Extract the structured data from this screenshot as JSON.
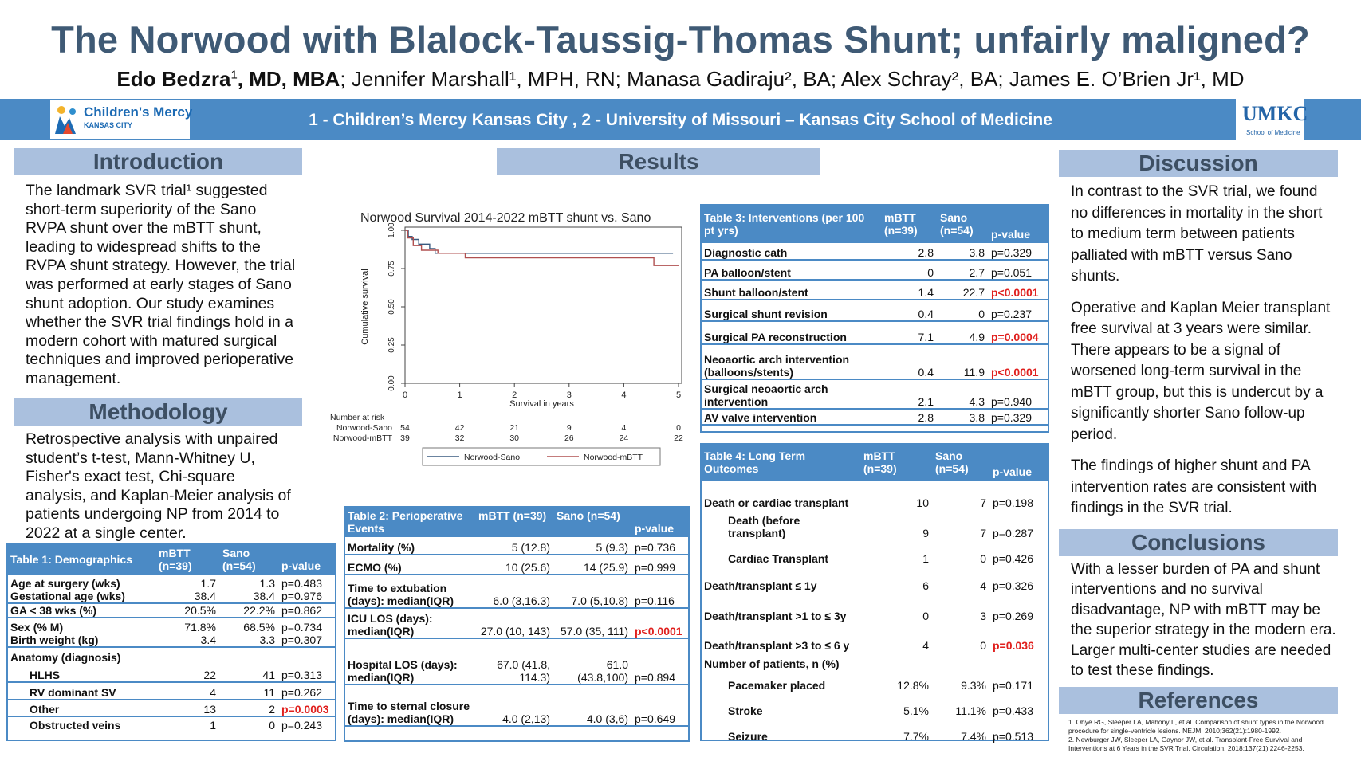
{
  "title": "The Norwood with Blalock-Taussig-Thomas Shunt; unfairly maligned?",
  "authors": {
    "a1_name": "Edo Bedzra",
    "a1_sup": "1",
    "a1_deg": ", MD, MBA",
    "rest": "; Jennifer Marshall¹, MPH, RN; Manasa Gadiraju², BA; Alex Schray², BA; James E. O’Brien Jr¹, MD"
  },
  "banner": {
    "affiliations": "1 - Children’s Mercy Kansas City , 2 - University of Missouri – Kansas City School of Medicine",
    "logo_left_name": "Children's Mercy",
    "logo_left_sub": "KANSAS CITY",
    "logo_right_name": "UMKC",
    "logo_right_sub": "School of Medicine"
  },
  "introduction": {
    "heading": "Introduction",
    "text": "The landmark SVR trial¹ suggested short-term superiority of the Sano RVPA shunt over the mBTT shunt, leading to widespread shifts to the RVPA shunt strategy. However, the trial was performed at early stages of Sano shunt adoption. Our study examines whether the SVR trial findings hold in a modern cohort with matured surgical techniques and improved perioperative management."
  },
  "methodology": {
    "heading": "Methodology",
    "text": "Retrospective analysis with unpaired student’s t-test, Mann-Whitney U, Fisher's exact test, Chi-square analysis, and Kaplan-Meier analysis of patients undergoing NP from 2014 to 2022 at a single center."
  },
  "results": {
    "heading": "Results"
  },
  "discussion": {
    "heading": "Discussion",
    "p1": "In contrast to the SVR trial, we found no differences in mortality in the short to medium term between patients palliated with mBTT versus Sano shunts.",
    "p2": "Operative and Kaplan Meier transplant free survival at 3 years were similar. There appears to be a signal of worsened long-term survival in the mBTT group, but this is undercut by a significantly shorter Sano follow-up period.",
    "p3": "The findings of higher shunt and PA intervention rates are consistent with findings in the SVR trial."
  },
  "conclusions": {
    "heading": "Conclusions",
    "text": "With a lesser burden of PA and shunt interventions and no survival disadvantage, NP with mBTT may be the superior strategy in the modern era. Larger multi-center studies are needed to test these findings."
  },
  "references": {
    "heading": "References",
    "r1": "1. Ohye RG, Sleeper LA, Mahony L, et al. Comparison of shunt types in the Norwood procedure for single-ventricle lesions. NEJM. 2010;362(21):1980-1992.",
    "r2": "2. Newburger JW, Sleeper LA, Gaynor JW, et al. Transplant-Free Survival and Interventions at 6 Years in the SVR Trial. Circulation. 2018;137(21):2246-2253."
  },
  "colors": {
    "accent": "#4b8ac5",
    "heading_bg": "#aac0de",
    "title": "#3f5a75",
    "significant": "#e0201e",
    "sano_line": "#3a5b80",
    "mbtt_line": "#b05050"
  },
  "table1": {
    "header": [
      "Table 1: Demographics",
      "mBTT (n=39)",
      "Sano (n=54)",
      "p-value"
    ],
    "rows": [
      {
        "label": "Age at surgery (wks)",
        "m": "1.7",
        "s": "1.3",
        "p": "p=0.483",
        "sig": false,
        "indent": 0,
        "bottom": false
      },
      {
        "label": "Gestational age (wks)",
        "m": "38.4",
        "s": "38.4",
        "p": "p=0.976",
        "sig": false,
        "indent": 0,
        "bottom": true
      },
      {
        "label": "GA < 38 wks (%)",
        "m": "20.5%",
        "s": "22.2%",
        "p": "p=0.862",
        "sig": false,
        "indent": 0,
        "bottom": true
      },
      {
        "label": "Sex (% M)",
        "m": "71.8%",
        "s": "68.5%",
        "p": "p=0.734",
        "sig": false,
        "indent": 0,
        "bottom": false
      },
      {
        "label": "Birth weight (kg)",
        "m": "3.4",
        "s": "3.3",
        "p": "p=0.307",
        "sig": false,
        "indent": 0,
        "bottom": true
      },
      {
        "label": "Anatomy (diagnosis)",
        "m": "",
        "s": "",
        "p": "",
        "sig": false,
        "indent": 0,
        "bottom": false
      },
      {
        "label": "HLHS",
        "m": "22",
        "s": "41",
        "p": "p=0.313",
        "sig": false,
        "indent": 1,
        "bottom": true
      },
      {
        "label": "RV dominant SV",
        "m": "4",
        "s": "11",
        "p": "p=0.262",
        "sig": false,
        "indent": 1,
        "bottom": true
      },
      {
        "label": "Other",
        "m": "13",
        "s": "2",
        "p": "p=0.0003",
        "sig": true,
        "indent": 1,
        "bottom": true
      },
      {
        "label": "Obstructed veins",
        "m": "1",
        "s": "0",
        "p": "p=0.243",
        "sig": false,
        "indent": 1,
        "bottom": false
      }
    ]
  },
  "table2": {
    "header": [
      "Table 2: Perioperative Events",
      "mBTT (n=39)",
      "Sano (n=54)",
      "p-value"
    ],
    "rows": [
      {
        "label": "Mortality (%)",
        "m": "5 (12.8)",
        "s": "5 (9.3)",
        "p": "p=0.736",
        "sig": false
      },
      {
        "label": "ECMO (%)",
        "m": "10 (25.6)",
        "s": "14 (25.9)",
        "p": "p=0.999",
        "sig": false
      },
      {
        "label": "Time to extubation (days): median(IQR)",
        "m": "6.0 (3,16.3)",
        "s": "7.0 (5,10.8)",
        "p": "p=0.116",
        "sig": false
      },
      {
        "label": "ICU LOS (days): median(IQR)",
        "m": "27.0 (10, 143)",
        "s": "57.0 (35, 111)",
        "p": "p<0.0001",
        "sig": true
      },
      {
        "label": "Hospital LOS (days): median(IQR)",
        "m": "67.0 (41.8, 114.3)",
        "s": "61.0 (43.8,100)",
        "p": "p=0.894",
        "sig": false
      },
      {
        "label": "Time to sternal closure (days): median(IQR)",
        "m": "4.0 (2,13)",
        "s": "4.0 (3,6)",
        "p": "p=0.649",
        "sig": false
      }
    ]
  },
  "table3": {
    "header": [
      "Table 3: Interventions (per 100 pt yrs)",
      "mBTT (n=39)",
      "Sano (n=54)",
      "p-value"
    ],
    "rows": [
      {
        "label": "Diagnostic cath",
        "m": "2.8",
        "s": "3.8",
        "p": "p=0.329",
        "sig": false
      },
      {
        "label": "PA balloon/stent",
        "m": "0",
        "s": "2.7",
        "p": "p=0.051",
        "sig": false
      },
      {
        "label": "Shunt balloon/stent",
        "m": "1.4",
        "s": "22.7",
        "p": "p<0.0001",
        "sig": true
      },
      {
        "label": "Surgical shunt revision",
        "m": "0.4",
        "s": "0",
        "p": "p=0.237",
        "sig": false
      },
      {
        "label": "Surgical PA reconstruction",
        "m": "7.1",
        "s": "4.9",
        "p": "p=0.0004",
        "sig": true
      },
      {
        "label": "Neoaortic arch intervention (balloons/stents)",
        "m": "0.4",
        "s": "11.9",
        "p": "p<0.0001",
        "sig": true
      },
      {
        "label": "Surgical neoaortic arch intervention",
        "m": "2.1",
        "s": "4.3",
        "p": "p=0.940",
        "sig": false
      },
      {
        "label": "AV valve intervention",
        "m": "2.8",
        "s": "3.8",
        "p": "p=0.329",
        "sig": false
      }
    ]
  },
  "table4": {
    "header": [
      "Table 4: Long Term Outcomes",
      "mBTT (n=39)",
      "Sano (n=54)",
      "p-value"
    ],
    "rows": [
      {
        "label": "Death or cardiac transplant",
        "m": "10",
        "s": "7",
        "p": "p=0.198",
        "sig": false,
        "indent": 0
      },
      {
        "label": "Death (before transplant)",
        "m": "9",
        "s": "7",
        "p": "p=0.287",
        "sig": false,
        "indent": 1
      },
      {
        "label": "Cardiac Transplant",
        "m": "1",
        "s": "0",
        "p": "p=0.426",
        "sig": false,
        "indent": 1
      },
      {
        "label": "Death/transplant ≤ 1y",
        "m": "6",
        "s": "4",
        "p": "p=0.326",
        "sig": false,
        "indent": 0
      },
      {
        "label": "Death/transplant >1 to ≤ 3y",
        "m": "0",
        "s": "3",
        "p": "p=0.269",
        "sig": false,
        "indent": 0
      },
      {
        "label": "Death/transplant >3 to ≤ 6 y",
        "m": "4",
        "s": "0",
        "p": "p=0.036",
        "sig": true,
        "indent": 0
      },
      {
        "label": "Number of patients, n (%)",
        "m": "",
        "s": "",
        "p": "",
        "sig": false,
        "indent": 0
      },
      {
        "label": "Pacemaker placed",
        "m": "12.8%",
        "s": "9.3%",
        "p": "p=0.171",
        "sig": false,
        "indent": 1
      },
      {
        "label": "Stroke",
        "m": "5.1%",
        "s": "11.1%",
        "p": "p=0.433",
        "sig": false,
        "indent": 1
      },
      {
        "label": "Seizure",
        "m": "7.7%",
        "s": "7.4%",
        "p": "p=0.513",
        "sig": false,
        "indent": 1
      }
    ]
  },
  "chart_data": {
    "type": "line",
    "title": "Norwood Survival 2014-2022 mBTT shunt vs. Sano",
    "xlabel": "Survival in years",
    "ylabel": "Cumulative survival",
    "xlim": [
      0,
      5
    ],
    "ylim": [
      0,
      1
    ],
    "xticks": [
      "0",
      "1",
      "2",
      "3",
      "4",
      "5"
    ],
    "yticks": [
      "0.00",
      "0.25",
      "0.50",
      "0.75",
      "1.00"
    ],
    "risk_title": "Number at risk",
    "risk_table": [
      {
        "name": "Norwood-Sano",
        "values": [
          "54",
          "42",
          "21",
          "9",
          "4",
          "0"
        ]
      },
      {
        "name": "Norwood-mBTT",
        "values": [
          "39",
          "32",
          "30",
          "26",
          "24",
          "22"
        ]
      }
    ],
    "legend_position": "bottom",
    "series": [
      {
        "name": "Norwood-Sano",
        "color": "#3a5b80",
        "x": [
          0,
          0.06,
          0.06,
          0.13,
          0.13,
          0.25,
          0.25,
          0.45,
          0.45,
          0.55,
          0.55,
          4.9
        ],
        "y": [
          1.0,
          1.0,
          0.96,
          0.96,
          0.94,
          0.94,
          0.91,
          0.91,
          0.88,
          0.88,
          0.85,
          0.85
        ]
      },
      {
        "name": "Norwood-mBTT",
        "color": "#b05050",
        "x": [
          0,
          0.05,
          0.05,
          0.15,
          0.15,
          0.3,
          0.3,
          0.6,
          0.6,
          1.1,
          1.1,
          4.55,
          4.55,
          5.0
        ],
        "y": [
          1.0,
          1.0,
          0.95,
          0.95,
          0.9,
          0.9,
          0.87,
          0.87,
          0.85,
          0.85,
          0.82,
          0.82,
          0.77,
          0.77
        ]
      }
    ]
  }
}
